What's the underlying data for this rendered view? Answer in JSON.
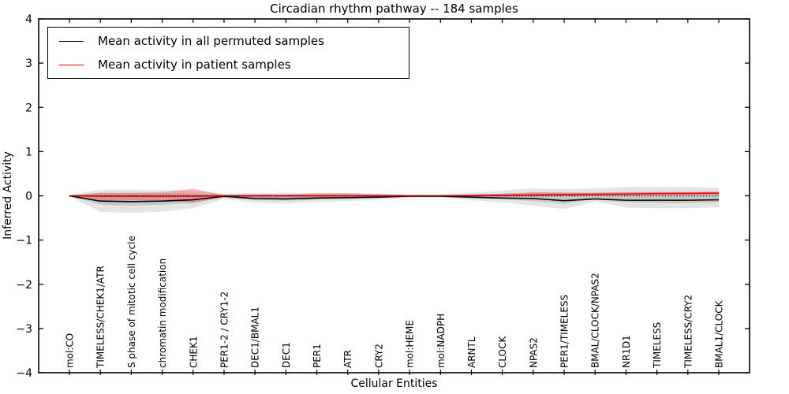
{
  "title": "Circadian rhythm pathway -- 184 samples",
  "axes": {
    "xlabel": "Cellular Entities",
    "ylabel": "Inferred Activity"
  },
  "legend": {
    "items": [
      {
        "label": "Mean activity in all permuted samples",
        "color": "#000000"
      },
      {
        "label": "Mean activity in patient samples",
        "color": "#ff0000"
      }
    ]
  },
  "colors": {
    "permuted_line": "#000000",
    "patient_line": "#ff0000",
    "permuted_band": "#000000",
    "patient_band": "#ff0000",
    "spine": "#000000",
    "background": "#ffffff"
  },
  "chart_data": {
    "type": "line",
    "title": "Circadian rhythm pathway -- 184 samples",
    "xlabel": "Cellular Entities",
    "ylabel": "Inferred Activity",
    "ylim": [
      -4,
      4
    ],
    "yticks": [
      -4,
      -3,
      -2,
      -1,
      0,
      1,
      2,
      3,
      4
    ],
    "grid": false,
    "legend_position": "upper left",
    "categories": [
      "mol:CO",
      "TIMELESS/CHEK1/ATR",
      "S phase of mitotic cell cycle",
      "chromatin modification",
      "CHEK1",
      "PER1-2 / CRY1-2",
      "DEC1/BMAL1",
      "DEC1",
      "PER1",
      "ATR",
      "CRY2",
      "mol:HEME",
      "mol:NADPH",
      "ARNTL",
      "CLOCK",
      "NPAS2",
      "PER1/TIMELESS",
      "BMAL/CLOCK/NPAS2",
      "NR1D1",
      "TIMELESS",
      "TIMELESS/CRY2",
      "BMAL1/CLOCK"
    ],
    "series": [
      {
        "name": "Mean activity in all permuted samples",
        "color": "#000000",
        "style": "solid",
        "width": 1.6,
        "values": [
          0,
          -0.12,
          -0.13,
          -0.12,
          -0.09,
          -0.01,
          -0.06,
          -0.07,
          -0.05,
          -0.04,
          -0.03,
          -0.01,
          -0.01,
          -0.03,
          -0.05,
          -0.06,
          -0.11,
          -0.07,
          -0.1,
          -0.1,
          -0.1,
          -0.09
        ]
      },
      {
        "name": "Mean activity in patient samples",
        "color": "#ff0000",
        "style": "solid",
        "width": 1.6,
        "values": [
          0,
          -0.01,
          -0.01,
          -0.01,
          -0.01,
          0,
          0,
          0,
          0,
          0,
          0,
          0,
          0,
          0.005,
          0.01,
          0.02,
          0.03,
          0.035,
          0.04,
          0.05,
          0.055,
          0.06
        ]
      },
      {
        "name": "Zero reference (dotted)",
        "color": "#000000",
        "style": "dotted",
        "width": 1.3,
        "values": [
          0,
          0,
          0,
          0,
          0,
          0,
          0,
          0,
          0,
          0,
          0,
          0,
          0,
          0,
          0,
          0,
          0,
          0,
          0,
          0,
          0,
          0
        ]
      }
    ],
    "bands": [
      {
        "name": "permuted-range-outer",
        "color": "#000000",
        "opacity": 0.1,
        "upper": [
          0.02,
          0.14,
          0.14,
          0.13,
          0.12,
          0.05,
          0.07,
          0.07,
          0.06,
          0.06,
          0.05,
          0.03,
          0.03,
          0.07,
          0.12,
          0.17,
          0.15,
          0.17,
          0.2,
          0.2,
          0.2,
          0.18
        ],
        "lower": [
          -0.02,
          -0.36,
          -0.38,
          -0.36,
          -0.28,
          -0.07,
          -0.16,
          -0.17,
          -0.14,
          -0.12,
          -0.09,
          -0.04,
          -0.04,
          -0.1,
          -0.15,
          -0.22,
          -0.3,
          -0.13,
          -0.27,
          -0.28,
          -0.28,
          -0.26
        ]
      },
      {
        "name": "permuted-range-inner",
        "color": "#000000",
        "opacity": 0.13,
        "upper": [
          0.01,
          0.06,
          0.06,
          0.06,
          0.05,
          0.02,
          0.03,
          0.03,
          0.03,
          0.03,
          0.02,
          0.015,
          0.015,
          0.03,
          0.05,
          0.07,
          0.06,
          0.07,
          0.08,
          0.08,
          0.08,
          0.08
        ],
        "lower": [
          -0.01,
          -0.2,
          -0.22,
          -0.2,
          -0.16,
          -0.04,
          -0.1,
          -0.11,
          -0.09,
          -0.07,
          -0.05,
          -0.02,
          -0.02,
          -0.05,
          -0.08,
          -0.12,
          -0.18,
          -0.07,
          -0.15,
          -0.16,
          -0.16,
          -0.15
        ]
      },
      {
        "name": "patient-range",
        "color": "#ff0000",
        "opacity": 0.25,
        "upper": [
          0.01,
          0.07,
          0.07,
          0.08,
          0.16,
          0.02,
          0.03,
          0.03,
          0.06,
          0.06,
          0.04,
          0.015,
          0.015,
          0.03,
          0.05,
          0.08,
          0.08,
          0.07,
          0.08,
          0.09,
          0.09,
          0.1
        ],
        "lower": [
          -0.01,
          -0.1,
          -0.1,
          -0.1,
          -0.16,
          -0.03,
          -0.04,
          -0.04,
          -0.06,
          -0.06,
          -0.04,
          -0.015,
          -0.015,
          -0.02,
          -0.02,
          -0.02,
          -0.01,
          0.0,
          0.01,
          0.02,
          0.02,
          0.03
        ]
      }
    ]
  }
}
